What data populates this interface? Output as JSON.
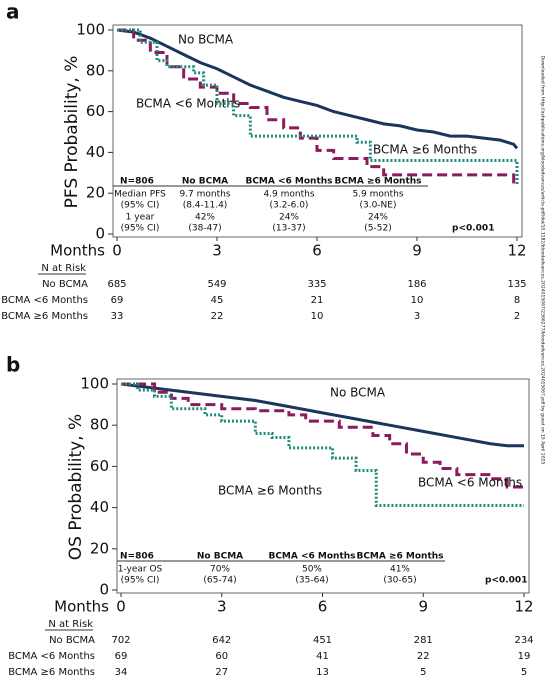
{
  "side_note": "Downloaded from http://ashpublications.org/bloodadvances/article-pdf/doi/10.1182/bloodadvances.2024015067/2366277/bloodadvances.2024015067.pdf by guest on 15 April 2025",
  "chart_data": [
    {
      "type": "line",
      "panel_label": "a",
      "y_label": "PFS Probability, %",
      "x_label": "Months",
      "xlim": [
        0,
        12
      ],
      "xticks": [
        0,
        3,
        6,
        9,
        12
      ],
      "ylim": [
        0,
        100
      ],
      "yticks": [
        0,
        20,
        40,
        60,
        80,
        100
      ],
      "series": [
        {
          "name": "No BCMA",
          "color": "#1b365d",
          "style": "solid",
          "x": [
            0,
            0.5,
            1,
            1.5,
            2,
            2.5,
            3,
            3.5,
            4,
            4.5,
            5,
            5.5,
            6,
            6.5,
            7,
            7.5,
            8,
            8.5,
            9,
            9.5,
            10,
            10.5,
            11,
            11.5,
            11.9,
            12
          ],
          "values": [
            100,
            99,
            96,
            92,
            88,
            84,
            81,
            77,
            73,
            70,
            67,
            65,
            63,
            60,
            58,
            56,
            54,
            53,
            51,
            50,
            48,
            48,
            47,
            46,
            44,
            42
          ]
        },
        {
          "name": "BCMA <6 Months",
          "color": "#8b1a5e",
          "style": "dashed",
          "x": [
            0,
            0.5,
            0.5,
            1,
            1,
            1.5,
            1.5,
            2,
            2,
            2.5,
            2.5,
            3,
            3,
            3.5,
            3.5,
            4,
            4,
            4.5,
            4.5,
            5,
            5,
            5.5,
            5.5,
            6,
            6,
            6.5,
            6.5,
            7.5,
            7.5,
            8,
            8,
            11.9,
            11.9,
            12
          ],
          "values": [
            100,
            100,
            95,
            95,
            89,
            89,
            82,
            82,
            76,
            76,
            72,
            72,
            69,
            69,
            64,
            64,
            62,
            62,
            56,
            56,
            52,
            52,
            47,
            47,
            41,
            41,
            37,
            37,
            33,
            33,
            29,
            29,
            24,
            24
          ]
        },
        {
          "name": "BCMA ≥6 Months",
          "color": "#1f8a7a",
          "style": "dotted",
          "x": [
            0,
            0.7,
            0.7,
            1.2,
            1.2,
            1.5,
            1.5,
            2.3,
            2.3,
            2.6,
            2.6,
            3,
            3,
            3.5,
            3.5,
            4,
            4,
            7.2,
            7.2,
            7.6,
            7.6,
            12,
            12
          ],
          "values": [
            100,
            100,
            94,
            94,
            85,
            85,
            82,
            82,
            79,
            79,
            73,
            73,
            64,
            64,
            58,
            58,
            48,
            48,
            45,
            45,
            36,
            36,
            24
          ]
        }
      ],
      "summary_table": {
        "header": [
          "N=806",
          "No BCMA",
          "BCMA <6 Months",
          "BCMA ≥6 Months"
        ],
        "rows": [
          [
            [
              "Median PFS",
              "(95% CI)"
            ],
            [
              "9.7 months",
              "(8.4-11.4)"
            ],
            [
              "4.9 months",
              "(3.2-6.0)"
            ],
            [
              "5.9 months",
              "(3.0-NE)"
            ]
          ],
          [
            [
              "1 year",
              "(95% CI)"
            ],
            [
              "42%",
              "(38-47)"
            ],
            [
              "24%",
              "(13-37)"
            ],
            [
              "24%",
              "(5-52)"
            ]
          ]
        ]
      },
      "p_value": "p<0.001",
      "risk_table": {
        "title": "N at Risk",
        "rows": [
          {
            "label": "No BCMA",
            "counts": [
              685,
              549,
              335,
              186,
              135
            ]
          },
          {
            "label": "BCMA <6 Months",
            "counts": [
              69,
              45,
              21,
              10,
              8
            ]
          },
          {
            "label": "BCMA ≥6 Months",
            "counts": [
              33,
              22,
              10,
              3,
              2
            ]
          }
        ]
      }
    },
    {
      "type": "line",
      "panel_label": "b",
      "y_label": "OS Probability, %",
      "x_label": "Months",
      "xlim": [
        0,
        12
      ],
      "xticks": [
        0,
        3,
        6,
        9,
        12
      ],
      "ylim": [
        0,
        100
      ],
      "yticks": [
        0,
        20,
        40,
        60,
        80,
        100
      ],
      "series": [
        {
          "name": "No BCMA",
          "color": "#1b365d",
          "style": "solid",
          "x": [
            0,
            1,
            2,
            3,
            4,
            5,
            6,
            7,
            8,
            9,
            10,
            11,
            11.5,
            12
          ],
          "values": [
            100,
            98,
            96,
            94,
            92,
            89,
            86,
            83,
            80,
            77,
            74,
            71,
            70,
            70
          ]
        },
        {
          "name": "BCMA <6 Months",
          "color": "#8b1a5e",
          "style": "dashed",
          "x": [
            0,
            1,
            1,
            1.5,
            1.5,
            2,
            2,
            3,
            3,
            4,
            4,
            5,
            5,
            5.5,
            5.5,
            6.5,
            6.5,
            7.5,
            7.5,
            8,
            8,
            8.5,
            8.5,
            9,
            9,
            9.5,
            9.5,
            10,
            10,
            11,
            11,
            11.5,
            11.5,
            12
          ],
          "values": [
            100,
            100,
            96,
            96,
            93,
            93,
            90,
            90,
            88,
            88,
            87,
            87,
            85,
            85,
            82,
            82,
            79,
            79,
            75,
            75,
            71,
            71,
            66,
            66,
            62,
            62,
            59,
            59,
            56,
            56,
            54,
            54,
            50,
            50
          ]
        },
        {
          "name": "BCMA ≥6 Months",
          "color": "#1f8a7a",
          "style": "dotted",
          "x": [
            0,
            0.5,
            0.5,
            1,
            1,
            1.5,
            1.5,
            2.5,
            2.5,
            3,
            3,
            4,
            4,
            4.5,
            4.5,
            5,
            5,
            6.3,
            6.3,
            7,
            7,
            7.6,
            7.6,
            12
          ],
          "values": [
            100,
            100,
            97,
            97,
            94,
            94,
            88,
            88,
            85,
            85,
            82,
            82,
            76,
            76,
            74,
            74,
            69,
            69,
            64,
            64,
            58,
            58,
            41,
            41
          ]
        }
      ],
      "summary_table": {
        "header": [
          "N=806",
          "No BCMA",
          "BCMA <6 Months",
          "BCMA ≥6 Months"
        ],
        "rows": [
          [
            [
              "1-year OS",
              "(95% CI)"
            ],
            [
              "70%",
              "(65-74)"
            ],
            [
              "50%",
              "(35-64)"
            ],
            [
              "41%",
              "(30-65)"
            ]
          ]
        ]
      },
      "p_value": "p<0.001",
      "risk_table": {
        "title": "N at Risk",
        "rows": [
          {
            "label": "No BCMA",
            "counts": [
              702,
              642,
              451,
              281,
              234
            ]
          },
          {
            "label": "BCMA <6 Months",
            "counts": [
              69,
              60,
              41,
              22,
              19
            ]
          },
          {
            "label": "BCMA ≥6 Months",
            "counts": [
              34,
              27,
              13,
              5,
              5
            ]
          }
        ]
      }
    }
  ]
}
